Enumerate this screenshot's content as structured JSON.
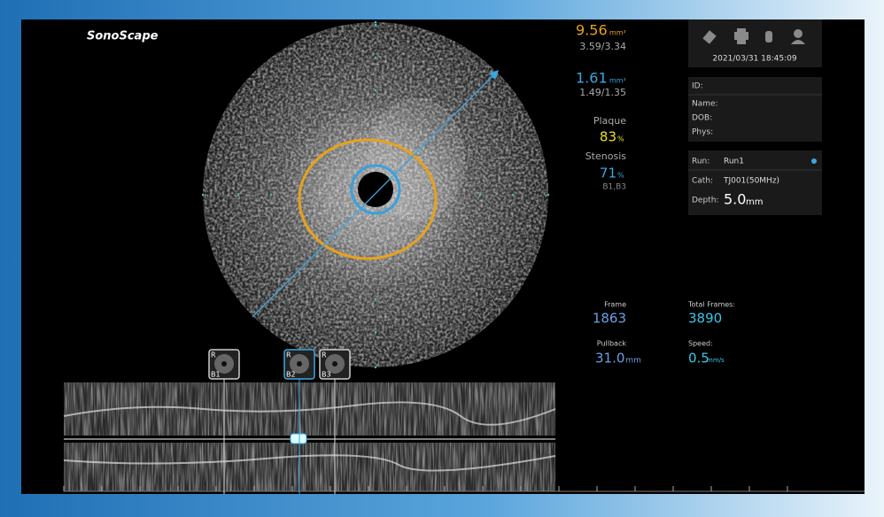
{
  "brand": "SonoScape",
  "measurements": {
    "vessel_area": {
      "value": "9.56",
      "unit": "mm²",
      "detail": "3.59/3.34"
    },
    "lumen_area": {
      "value": "1.61",
      "unit": "mm²",
      "detail": "1.49/1.35"
    },
    "plaque": {
      "label": "Plaque",
      "value": "83",
      "unit": "%"
    },
    "stenosis": {
      "label": "Stenosis",
      "value": "71",
      "unit": "%",
      "detail": "B1,B3"
    }
  },
  "status": {
    "datetime": "2021/03/31 18:45:09"
  },
  "patient": {
    "fields": [
      "ID:",
      "Name:",
      "DOB:",
      "Phys:"
    ]
  },
  "run": {
    "run_label": "Run:",
    "run": "Run1",
    "cath_label": "Cath:",
    "cath": "TJ001(50MHz)",
    "depth_label": "Depth:",
    "depth": "5.0",
    "depth_unit": "mm"
  },
  "playback": {
    "frame": {
      "label": "Frame",
      "value": "1863"
    },
    "total_frames": {
      "label": "Total Frames:",
      "value": "3890"
    },
    "pullback": {
      "label": "Pullback",
      "value": "31.0",
      "unit": "mm"
    },
    "speed": {
      "label": "Speed:",
      "value": "0.5",
      "unit": "mm/s"
    }
  },
  "bookmarks": [
    {
      "tag": "R",
      "label": "B1"
    },
    {
      "tag": "R",
      "label": "B2"
    },
    {
      "tag": "R",
      "label": "B3"
    }
  ]
}
